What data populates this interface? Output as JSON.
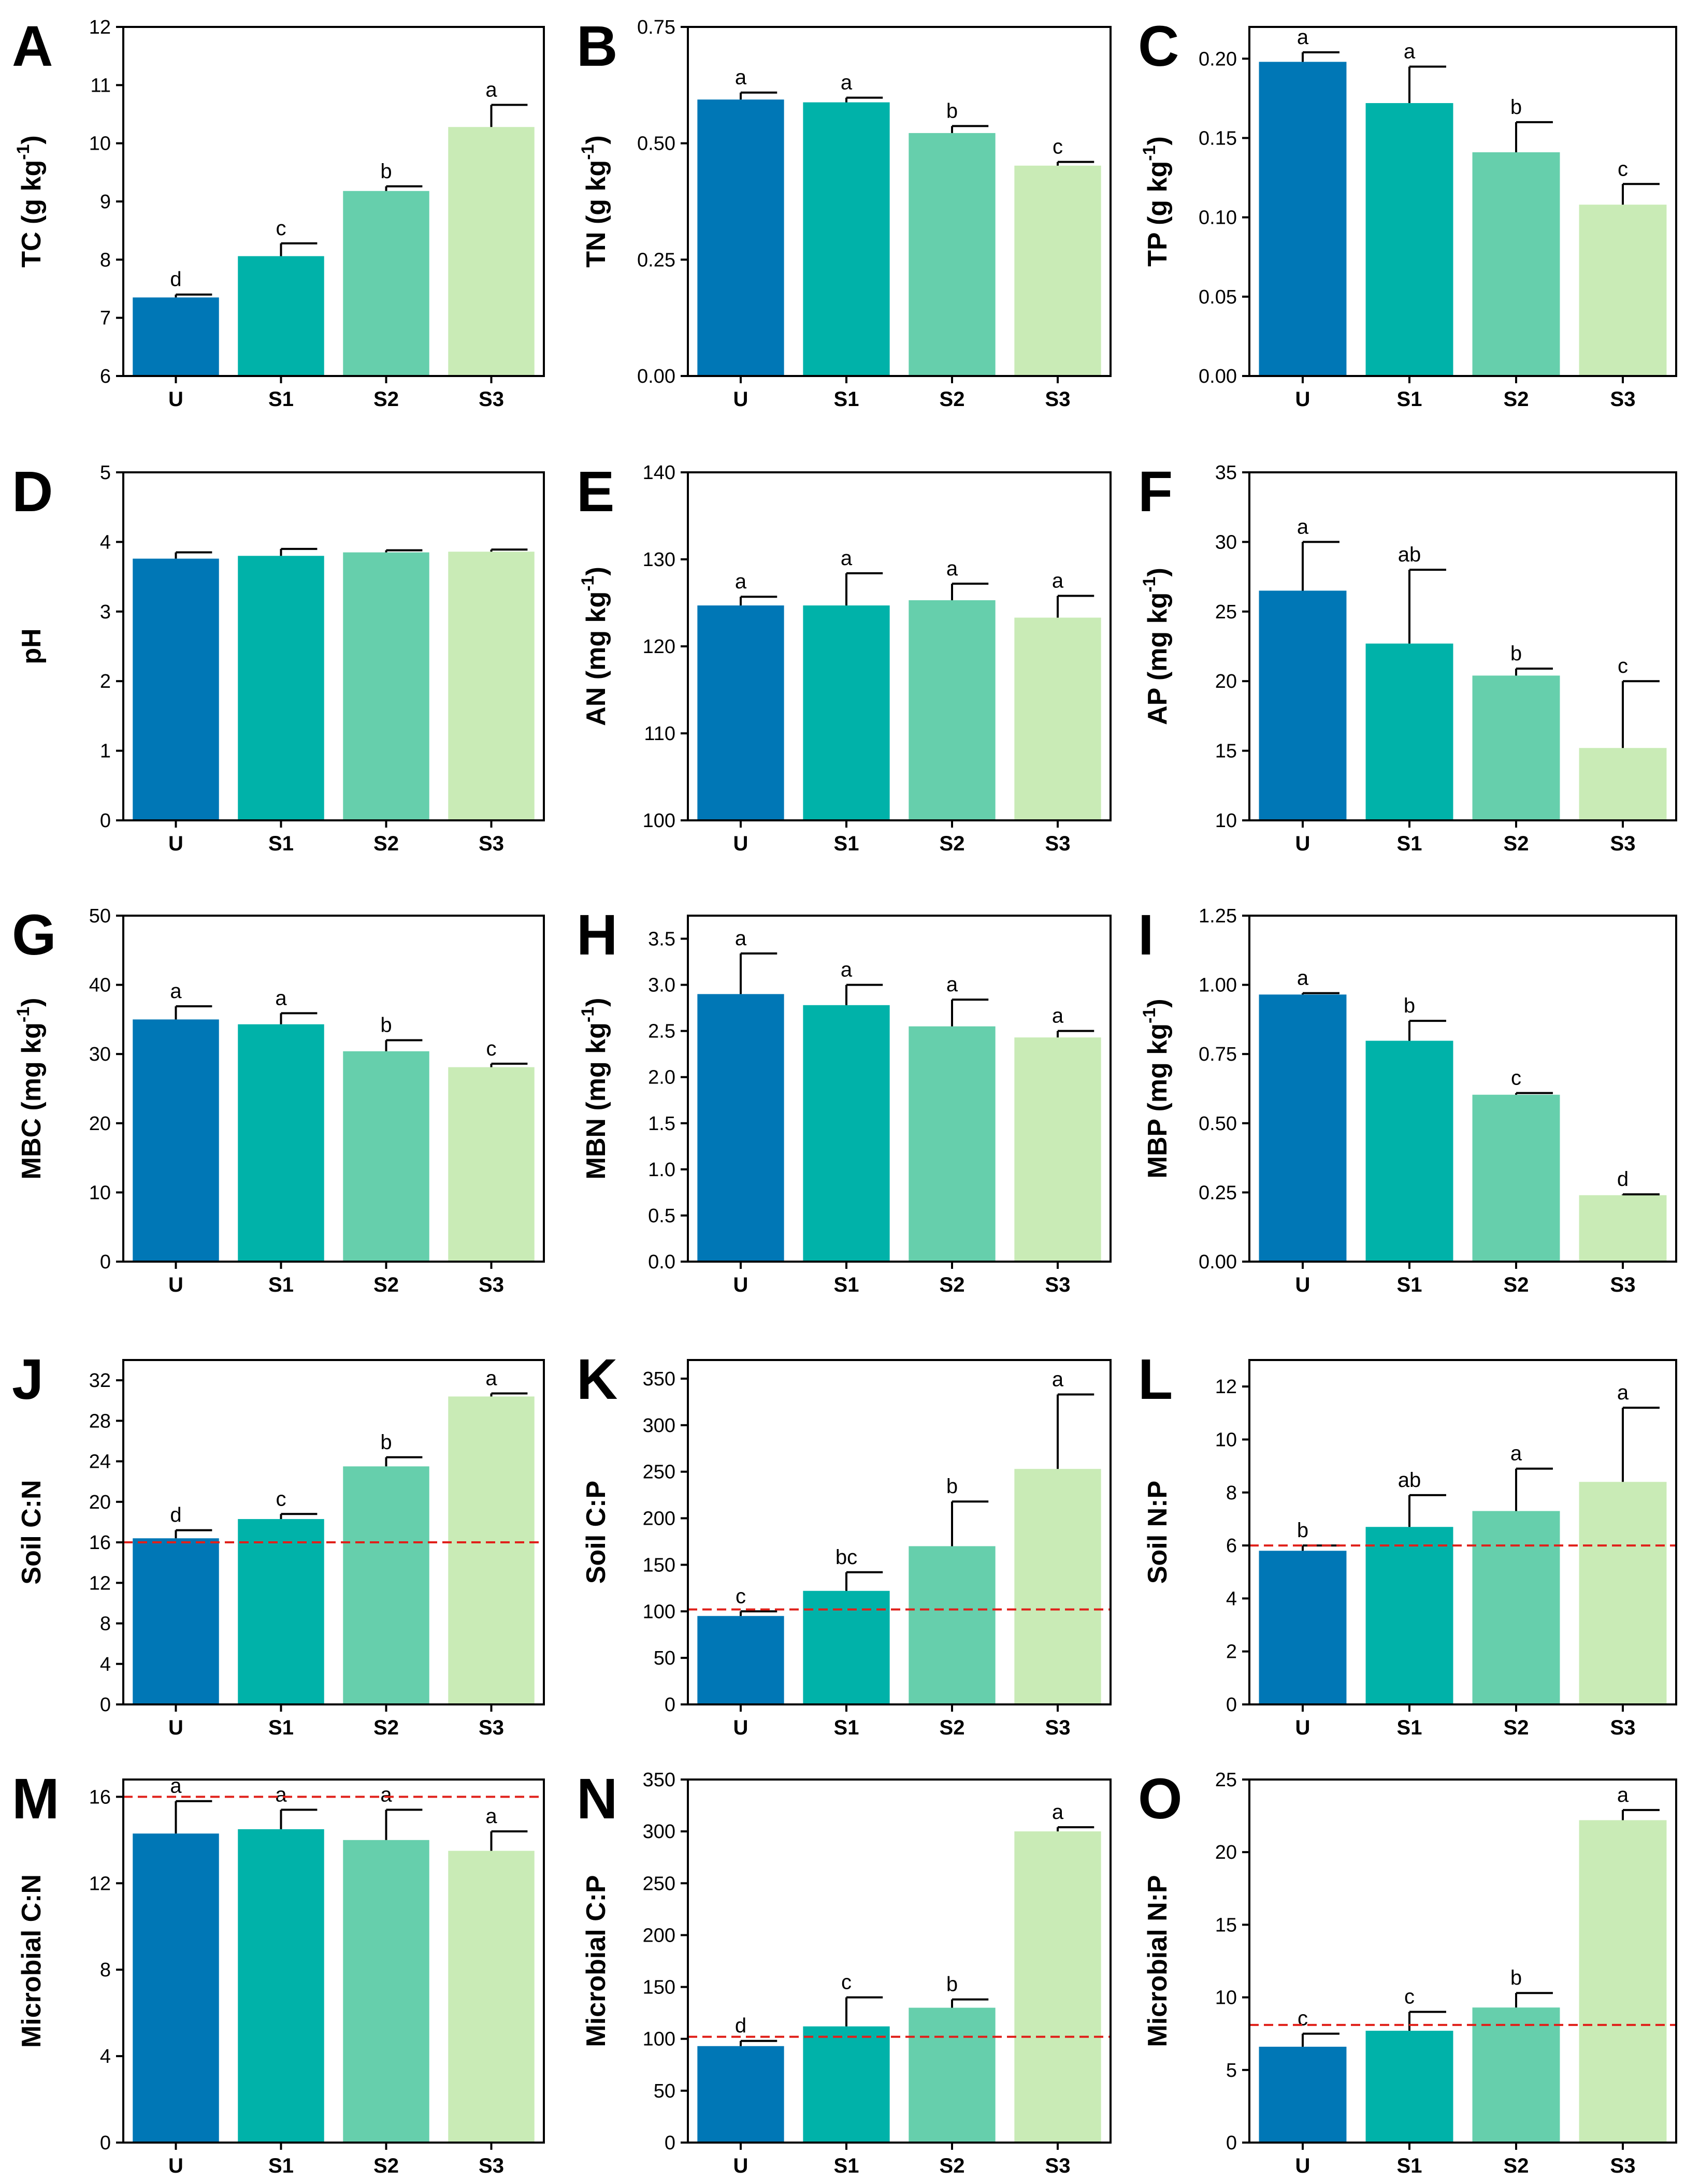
{
  "figure_title": "",
  "colors": {
    "U": "#0077b6",
    "S1": "#00b2a9",
    "S2": "#66cfac",
    "S3": "#c9ebb6",
    "refline": "#e0201a"
  },
  "chart_data": [
    {
      "id": "A",
      "type": "bar",
      "ylabel": "TC (g kg",
      "ylabel_sup": "-1",
      "ylabel_tail": ")",
      "categories": [
        "U",
        "S1",
        "S2",
        "S3"
      ],
      "values": [
        7.35,
        8.06,
        9.18,
        10.28
      ],
      "errors": [
        0.05,
        0.22,
        0.08,
        0.38
      ],
      "letters": [
        "d",
        "c",
        "b",
        "a"
      ],
      "ylim": [
        6,
        12
      ],
      "ticks": [
        "6",
        "7",
        "8",
        "9",
        "10",
        "11",
        "12"
      ],
      "refline": null
    },
    {
      "id": "B",
      "type": "bar",
      "ylabel": "TN (g kg",
      "ylabel_sup": "-1",
      "ylabel_tail": ")",
      "categories": [
        "U",
        "S1",
        "S2",
        "S3"
      ],
      "values": [
        0.594,
        0.588,
        0.522,
        0.452
      ],
      "errors": [
        0.015,
        0.01,
        0.015,
        0.008
      ],
      "letters": [
        "a",
        "a",
        "b",
        "c"
      ],
      "ylim": [
        0,
        0.75
      ],
      "ticks": [
        "0.00",
        "0.25",
        "0.50",
        "0.75"
      ],
      "refline": null
    },
    {
      "id": "C",
      "type": "bar",
      "ylabel": "TP (g kg",
      "ylabel_sup": "-1",
      "ylabel_tail": ")",
      "categories": [
        "U",
        "S1",
        "S2",
        "S3"
      ],
      "values": [
        0.198,
        0.172,
        0.141,
        0.108
      ],
      "errors": [
        0.006,
        0.023,
        0.019,
        0.013
      ],
      "letters": [
        "a",
        "a",
        "b",
        "c"
      ],
      "ylim": [
        0,
        0.22
      ],
      "ticks": [
        "0.00",
        "0.05",
        "0.10",
        "0.15",
        "0.20"
      ],
      "refline": null
    },
    {
      "id": "D",
      "type": "bar",
      "ylabel": "pH",
      "ylabel_sup": "",
      "ylabel_tail": "",
      "categories": [
        "U",
        "S1",
        "S2",
        "S3"
      ],
      "values": [
        3.76,
        3.8,
        3.85,
        3.86
      ],
      "errors": [
        0.09,
        0.1,
        0.03,
        0.03
      ],
      "letters": [
        "",
        "",
        "",
        ""
      ],
      "ylim": [
        0,
        5
      ],
      "ticks": [
        "0",
        "1",
        "2",
        "3",
        "4",
        "5"
      ],
      "refline": null
    },
    {
      "id": "E",
      "type": "bar",
      "ylabel": "AN (mg kg",
      "ylabel_sup": "-1",
      "ylabel_tail": ")",
      "categories": [
        "U",
        "S1",
        "S2",
        "S3"
      ],
      "values": [
        124.7,
        124.7,
        125.3,
        123.3
      ],
      "errors": [
        1.0,
        3.7,
        1.9,
        2.5
      ],
      "letters": [
        "a",
        "a",
        "a",
        "a"
      ],
      "ylim": [
        100,
        140
      ],
      "ticks": [
        "100",
        "110",
        "120",
        "130",
        "140"
      ],
      "refline": null
    },
    {
      "id": "F",
      "type": "bar",
      "ylabel": "AP (mg kg",
      "ylabel_sup": "-1",
      "ylabel_tail": ")",
      "categories": [
        "U",
        "S1",
        "S2",
        "S3"
      ],
      "values": [
        26.5,
        22.7,
        20.4,
        15.2
      ],
      "errors": [
        3.5,
        5.3,
        0.5,
        4.8
      ],
      "letters": [
        "a",
        "ab",
        "b",
        "c"
      ],
      "ylim": [
        10,
        35
      ],
      "ticks": [
        "10",
        "15",
        "20",
        "25",
        "30",
        "35"
      ],
      "refline": null
    },
    {
      "id": "G",
      "type": "bar",
      "ylabel": "MBC (mg kg",
      "ylabel_sup": "-1",
      "ylabel_tail": ")",
      "categories": [
        "U",
        "S1",
        "S2",
        "S3"
      ],
      "values": [
        35.0,
        34.3,
        30.4,
        28.1
      ],
      "errors": [
        1.9,
        1.6,
        1.6,
        0.5
      ],
      "letters": [
        "a",
        "a",
        "b",
        "c"
      ],
      "ylim": [
        0,
        50
      ],
      "ticks": [
        "0",
        "10",
        "20",
        "30",
        "40",
        "50"
      ],
      "refline": null
    },
    {
      "id": "H",
      "type": "bar",
      "ylabel": "MBN (mg kg",
      "ylabel_sup": "-1",
      "ylabel_tail": ")",
      "categories": [
        "U",
        "S1",
        "S2",
        "S3"
      ],
      "values": [
        2.9,
        2.78,
        2.55,
        2.43
      ],
      "errors": [
        0.44,
        0.22,
        0.29,
        0.07
      ],
      "letters": [
        "a",
        "a",
        "a",
        "a"
      ],
      "ylim": [
        0,
        3.75
      ],
      "ticks": [
        "0.0",
        "0.5",
        "1.0",
        "1.5",
        "2.0",
        "2.5",
        "3.0",
        "3.5"
      ],
      "refline": null
    },
    {
      "id": "I",
      "type": "bar",
      "ylabel": "MBP (mg kg",
      "ylabel_sup": "-1",
      "ylabel_tail": ")",
      "categories": [
        "U",
        "S1",
        "S2",
        "S3"
      ],
      "values": [
        0.965,
        0.798,
        0.603,
        0.24
      ],
      "errors": [
        0.005,
        0.072,
        0.006,
        0.003
      ],
      "letters": [
        "a",
        "b",
        "c",
        "d"
      ],
      "ylim": [
        0,
        1.25
      ],
      "ticks": [
        "0.00",
        "0.25",
        "0.50",
        "0.75",
        "1.00",
        "1.25"
      ],
      "refline": null
    },
    {
      "id": "J",
      "type": "bar",
      "ylabel": "Soil C:N",
      "ylabel_sup": "",
      "ylabel_tail": "",
      "categories": [
        "U",
        "S1",
        "S2",
        "S3"
      ],
      "values": [
        16.4,
        18.3,
        23.5,
        30.4
      ],
      "errors": [
        0.8,
        0.5,
        0.9,
        0.3
      ],
      "letters": [
        "d",
        "c",
        "b",
        "a"
      ],
      "ylim": [
        0,
        34
      ],
      "ticks": [
        "0",
        "4",
        "8",
        "12",
        "16",
        "20",
        "24",
        "28",
        "32"
      ],
      "refline": 16
    },
    {
      "id": "K",
      "type": "bar",
      "ylabel": "Soil C:P",
      "ylabel_sup": "",
      "ylabel_tail": "",
      "categories": [
        "U",
        "S1",
        "S2",
        "S3"
      ],
      "values": [
        95,
        122,
        170,
        253
      ],
      "errors": [
        5,
        20,
        48,
        80
      ],
      "letters": [
        "c",
        "bc",
        "b",
        "a"
      ],
      "ylim": [
        0,
        370
      ],
      "ticks": [
        "0",
        "50",
        "100",
        "150",
        "200",
        "250",
        "300",
        "350"
      ],
      "refline": 102
    },
    {
      "id": "L",
      "type": "bar",
      "ylabel": "Soil N:P",
      "ylabel_sup": "",
      "ylabel_tail": "",
      "categories": [
        "U",
        "S1",
        "S2",
        "S3"
      ],
      "values": [
        5.8,
        6.7,
        7.3,
        8.4
      ],
      "errors": [
        0.2,
        1.2,
        1.6,
        2.8
      ],
      "letters": [
        "b",
        "ab",
        "a",
        "a"
      ],
      "ylim": [
        0,
        13
      ],
      "ticks": [
        "0",
        "2",
        "4",
        "6",
        "8",
        "10",
        "12"
      ],
      "refline": 6
    },
    {
      "id": "M",
      "type": "bar",
      "ylabel": "Microbial C:N",
      "ylabel_sup": "",
      "ylabel_tail": "",
      "categories": [
        "U",
        "S1",
        "S2",
        "S3"
      ],
      "values": [
        14.3,
        14.5,
        14.0,
        13.5
      ],
      "errors": [
        1.5,
        0.9,
        1.4,
        0.9
      ],
      "letters": [
        "a",
        "a",
        "a",
        "a"
      ],
      "ylim": [
        0,
        16.8
      ],
      "ticks": [
        "0",
        "4",
        "8",
        "12",
        "16"
      ],
      "refline": 16
    },
    {
      "id": "N",
      "type": "bar",
      "ylabel": "Microbial C:P",
      "ylabel_sup": "",
      "ylabel_tail": "",
      "categories": [
        "U",
        "S1",
        "S2",
        "S3"
      ],
      "values": [
        93,
        112,
        130,
        300
      ],
      "errors": [
        5,
        28,
        8,
        4
      ],
      "letters": [
        "d",
        "c",
        "b",
        "a"
      ],
      "ylim": [
        0,
        350
      ],
      "ticks": [
        "0",
        "50",
        "100",
        "150",
        "200",
        "250",
        "300",
        "350"
      ],
      "refline": 102
    },
    {
      "id": "O",
      "type": "bar",
      "ylabel": "Microbial N:P",
      "ylabel_sup": "",
      "ylabel_tail": "",
      "categories": [
        "U",
        "S1",
        "S2",
        "S3"
      ],
      "values": [
        6.6,
        7.7,
        9.3,
        22.2
      ],
      "errors": [
        0.9,
        1.3,
        1.0,
        0.7
      ],
      "letters": [
        "c",
        "c",
        "b",
        "a"
      ],
      "ylim": [
        0,
        25
      ],
      "ticks": [
        "0",
        "5",
        "10",
        "15",
        "20",
        "25"
      ],
      "refline": 8.1
    }
  ]
}
